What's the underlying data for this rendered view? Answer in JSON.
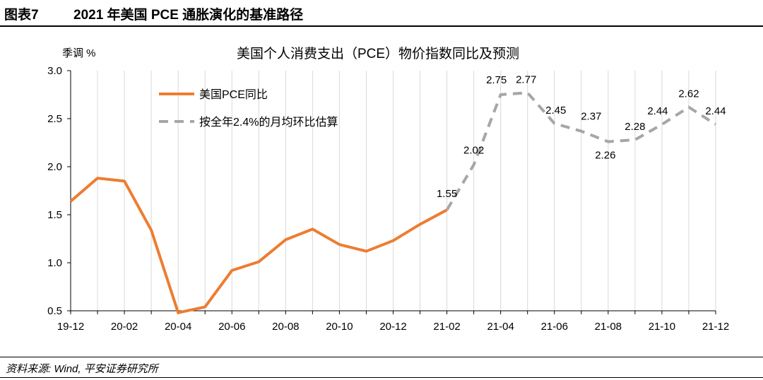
{
  "header": {
    "figure_label": "图表7",
    "figure_title": "2021 年美国 PCE 通胀演化的基准路径"
  },
  "footer": {
    "source": "资料来源: Wind, 平安证券研究所"
  },
  "chart_data": {
    "type": "line",
    "title": "美国个人消费支出（PCE）物价指数同比及预测",
    "ylabel": "季调 %",
    "ylim": [
      0.5,
      3.0
    ],
    "yticks": [
      "0.5",
      "1.0",
      "1.5",
      "2.0",
      "2.5",
      "3.0"
    ],
    "xtick_labels": [
      "19-12",
      "20-02",
      "20-04",
      "20-06",
      "20-08",
      "20-10",
      "20-12",
      "21-02",
      "21-04",
      "21-06",
      "21-08",
      "21-10",
      "21-12"
    ],
    "x": [
      "19-12",
      "20-01",
      "20-02",
      "20-03",
      "20-04",
      "20-05",
      "20-06",
      "20-07",
      "20-08",
      "20-09",
      "20-10",
      "20-11",
      "20-12",
      "21-01",
      "21-02",
      "21-03",
      "21-04",
      "21-05",
      "21-06",
      "21-07",
      "21-08",
      "21-09",
      "21-10",
      "21-11",
      "21-12"
    ],
    "legend_position": "top-left",
    "grid": "vertical",
    "series": [
      {
        "name": "美国PCE同比",
        "color": "#ED7D31",
        "style": "solid",
        "values": [
          1.64,
          1.88,
          1.85,
          1.34,
          0.48,
          0.54,
          0.92,
          1.01,
          1.24,
          1.35,
          1.19,
          1.12,
          1.23,
          1.4,
          1.55,
          null,
          null,
          null,
          null,
          null,
          null,
          null,
          null,
          null,
          null
        ]
      },
      {
        "name": "按全年2.4%的月均环比估算",
        "color": "#A6A6A6",
        "style": "dashed",
        "values": [
          null,
          null,
          null,
          null,
          null,
          null,
          null,
          null,
          null,
          null,
          null,
          null,
          null,
          null,
          1.55,
          2.02,
          2.75,
          2.77,
          2.45,
          2.37,
          2.26,
          2.28,
          2.44,
          2.62,
          2.44
        ],
        "data_labels": [
          "1.55",
          "2.02",
          "2.75",
          "2.77",
          "2.45",
          "2.37",
          "2.26",
          "2.28",
          "2.44",
          "2.62",
          "2.44"
        ]
      }
    ]
  }
}
